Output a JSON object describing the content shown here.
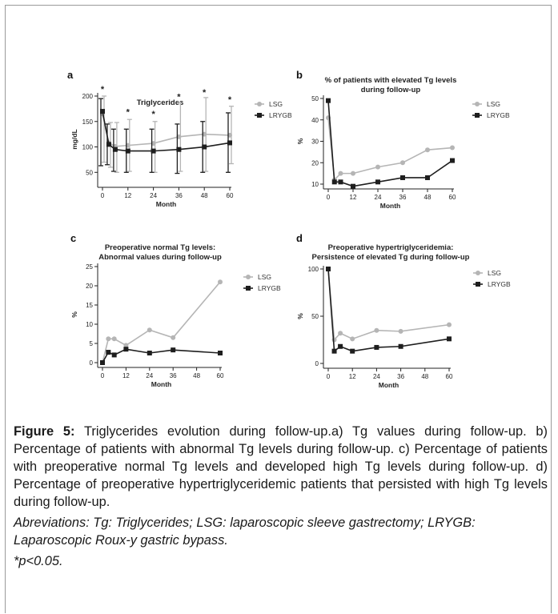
{
  "legend": {
    "lsg": "LSG",
    "lrygb": "LRYGB"
  },
  "colors": {
    "lsg": "#b5b5b5",
    "lrygb": "#1e1e1e",
    "axis": "#222222"
  },
  "chart_data": [
    {
      "id": "a",
      "letter": "a",
      "type": "line",
      "title_lines": [
        "Triglycerides"
      ],
      "xlabel": "Month",
      "ylabel": "mg/dL",
      "x": [
        0,
        3,
        6,
        12,
        24,
        36,
        48,
        60
      ],
      "xticks": [
        0,
        12,
        24,
        36,
        48,
        60
      ],
      "yticks": [
        50,
        100,
        150,
        200
      ],
      "xlim": [
        0,
        60
      ],
      "ylim": [
        30,
        200
      ],
      "significance": {
        "label": "*",
        "x": [
          0,
          12,
          24,
          36,
          48,
          60
        ],
        "y": [
          203,
          158,
          154,
          188,
          197,
          183
        ]
      },
      "series": [
        {
          "name": "LSG",
          "key": "lsg",
          "marker": "circle",
          "values": [
            165,
            108,
            101,
            103,
            107,
            120,
            125,
            123
          ],
          "error_low": [
            70,
            60,
            50,
            52,
            50,
            52,
            52,
            67
          ],
          "error_high": [
            200,
            148,
            148,
            154,
            150,
            188,
            197,
            180
          ]
        },
        {
          "name": "LRYGB",
          "key": "lrygb",
          "marker": "square",
          "values": [
            170,
            105,
            95,
            92,
            92,
            95,
            100,
            108
          ],
          "error_low": [
            63,
            65,
            52,
            50,
            50,
            48,
            50,
            50
          ],
          "error_high": [
            195,
            145,
            135,
            135,
            135,
            145,
            150,
            167
          ]
        }
      ]
    },
    {
      "id": "b",
      "letter": "b",
      "type": "line",
      "title_lines": [
        "% of patients with elevated Tg levels",
        "during follow-up"
      ],
      "xlabel": "Month",
      "ylabel": "%",
      "x": [
        0,
        3,
        6,
        12,
        24,
        36,
        48,
        60
      ],
      "xticks": [
        0,
        12,
        24,
        36,
        48,
        60
      ],
      "yticks": [
        10,
        20,
        30,
        40,
        50
      ],
      "xlim": [
        0,
        60
      ],
      "ylim": [
        10,
        50
      ],
      "series": [
        {
          "name": "LSG",
          "key": "lsg",
          "marker": "circle",
          "values": [
            41,
            12,
            15,
            15,
            18,
            20,
            26,
            27
          ]
        },
        {
          "name": "LRYGB",
          "key": "lrygb",
          "marker": "square",
          "values": [
            49,
            11,
            11,
            9,
            11,
            13,
            13,
            21
          ]
        }
      ]
    },
    {
      "id": "c",
      "letter": "c",
      "type": "line",
      "title_lines": [
        "Preoperative normal Tg levels:",
        "Abnormal values during follow-up"
      ],
      "xlabel": "Month",
      "ylabel": "%",
      "x": [
        0,
        3,
        6,
        12,
        24,
        36,
        60
      ],
      "xticks": [
        0,
        12,
        24,
        36,
        48,
        60
      ],
      "yticks": [
        0,
        5,
        10,
        15,
        20,
        25
      ],
      "xlim": [
        0,
        60
      ],
      "ylim": [
        0,
        25
      ],
      "series": [
        {
          "name": "LSG",
          "key": "lsg",
          "marker": "circle",
          "values": [
            0,
            6.2,
            6.2,
            4.5,
            8.5,
            6.5,
            21
          ]
        },
        {
          "name": "LRYGB",
          "key": "lrygb",
          "marker": "square",
          "values": [
            0,
            2.7,
            2.0,
            3.5,
            2.5,
            3.3,
            2.5
          ]
        }
      ]
    },
    {
      "id": "d",
      "letter": "d",
      "type": "line",
      "title_lines": [
        "Preoperative hypertriglyceridemia:",
        "Persistence of elevated Tg during follow-up"
      ],
      "xlabel": "Month",
      "ylabel": "%",
      "x": [
        0,
        3,
        6,
        12,
        24,
        36,
        60
      ],
      "xticks": [
        0,
        12,
        24,
        36,
        48,
        60
      ],
      "yticks": [
        0,
        50,
        100
      ],
      "xlim": [
        0,
        60
      ],
      "ylim": [
        0,
        100
      ],
      "series": [
        {
          "name": "LSG",
          "key": "lsg",
          "marker": "circle",
          "values": [
            100,
            25,
            32,
            26,
            35,
            34,
            41
          ]
        },
        {
          "name": "LRYGB",
          "key": "lrygb",
          "marker": "square",
          "values": [
            100,
            13,
            18,
            13,
            17,
            18,
            26
          ]
        }
      ]
    }
  ],
  "caption": {
    "figure_label": "Figure 5:",
    "figure_text": " Triglycerides evolution during follow-up.a) Tg values during follow-up. b) Percentage of patients with abnormal Tg levels during follow-up. c) Percentage of patients with preoperative normal Tg levels and developed high Tg levels during follow-up. d) Percentage of preoperative hypertriglyceridemic patients that persisted with high Tg levels during follow-up.",
    "abbreviations": "Abreviations: Tg: Triglycerides; LSG: laparoscopic sleeve gastrectomy; LRYGB: Laparoscopic Roux-y gastric bypass.",
    "significance_note": "*p<0.05."
  }
}
